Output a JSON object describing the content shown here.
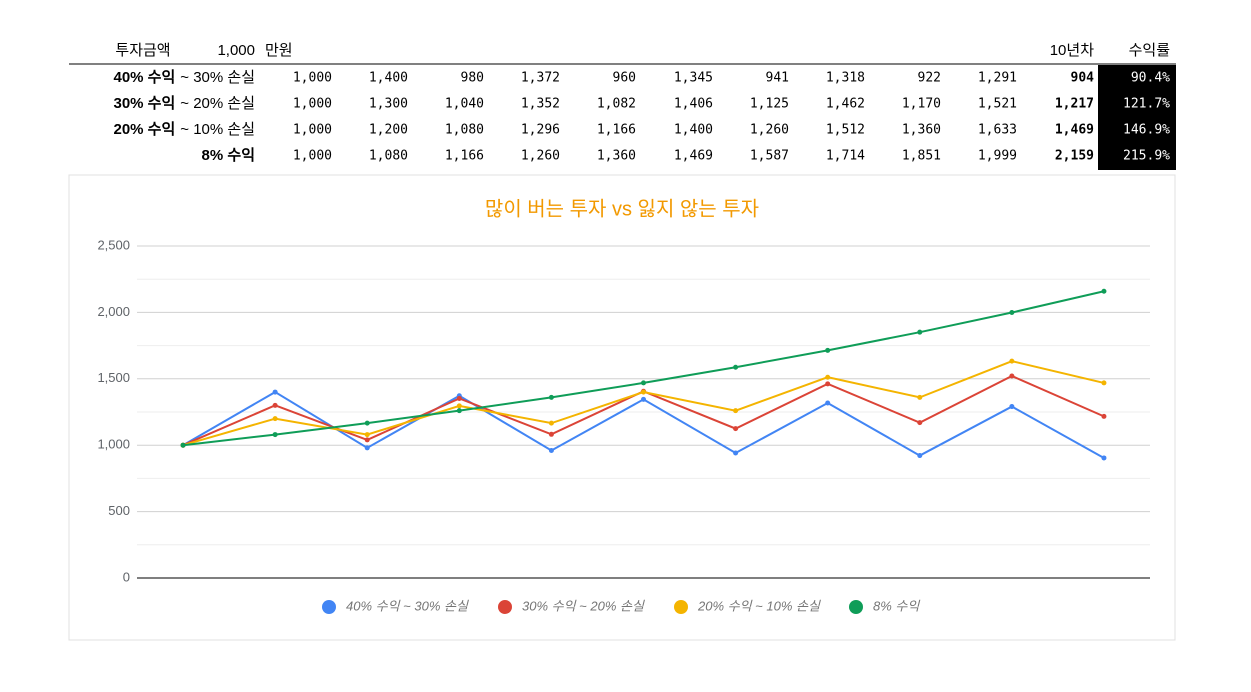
{
  "table": {
    "header": {
      "label": "투자금액",
      "amount": "1,000",
      "unit": "만원",
      "final": "10년차",
      "rate": "수익률"
    },
    "rows": [
      {
        "bold": "40% 수익",
        "rest": "~ 30% 손실",
        "values": [
          "1,000",
          "1,400",
          "980",
          "1,372",
          "960",
          "1,345",
          "941",
          "1,318",
          "922",
          "1,291"
        ],
        "final": "904",
        "rate": "90.4%"
      },
      {
        "bold": "30% 수익",
        "rest": "~ 20% 손실",
        "values": [
          "1,000",
          "1,300",
          "1,040",
          "1,352",
          "1,082",
          "1,406",
          "1,125",
          "1,462",
          "1,170",
          "1,521"
        ],
        "final": "1,217",
        "rate": "121.7%"
      },
      {
        "bold": "20% 수익",
        "rest": "~ 10% 손실",
        "values": [
          "1,000",
          "1,200",
          "1,080",
          "1,296",
          "1,166",
          "1,400",
          "1,260",
          "1,512",
          "1,360",
          "1,633"
        ],
        "final": "1,469",
        "rate": "146.9%"
      },
      {
        "bold": "8% 수익",
        "values": [
          "1,000",
          "1,080",
          "1,166",
          "1,260",
          "1,360",
          "1,469",
          "1,587",
          "1,714",
          "1,851",
          "1,999"
        ],
        "final": "2,159",
        "rate": "215.9%"
      }
    ]
  },
  "chart_data": {
    "type": "line",
    "title": "많이 버는 투자 vs 잃지 않는 투자",
    "categories": [
      null,
      null,
      null,
      null,
      null,
      null,
      null,
      null,
      null,
      null,
      null
    ],
    "series": [
      {
        "name": "40% 수익 ~ 30% 손실",
        "color": "#4285f4",
        "values": [
          1000,
          1400,
          980,
          1372,
          960,
          1345,
          941,
          1318,
          922,
          1291,
          904
        ]
      },
      {
        "name": "30% 수익 ~ 20% 손실",
        "color": "#db4437",
        "values": [
          1000,
          1300,
          1040,
          1352,
          1082,
          1406,
          1125,
          1462,
          1170,
          1521,
          1217
        ]
      },
      {
        "name": "20% 수익 ~ 10% 손실",
        "color": "#f4b400",
        "values": [
          1000,
          1200,
          1080,
          1296,
          1166,
          1400,
          1260,
          1512,
          1360,
          1633,
          1469
        ]
      },
      {
        "name": "8% 수익",
        "color": "#0f9d58",
        "values": [
          1000,
          1080,
          1166,
          1260,
          1360,
          1469,
          1587,
          1714,
          1851,
          1999,
          2159
        ]
      }
    ],
    "ylim": [
      0,
      2500
    ],
    "yticks": [
      0,
      500,
      {
        "value": 1000,
        "label": "1,000"
      },
      {
        "value": 1500,
        "label": "1,500"
      },
      {
        "value": 2000,
        "label": "2,000"
      },
      {
        "value": 2500,
        "label": "2,500"
      }
    ],
    "minor_yticks": [
      250,
      750,
      1250,
      1750,
      2250
    ],
    "grid": true,
    "legend": "bottom"
  }
}
